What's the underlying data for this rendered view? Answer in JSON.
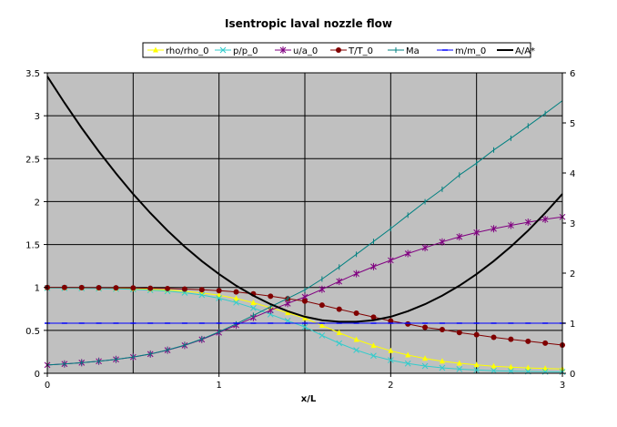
{
  "chart_data": {
    "type": "line",
    "title": "Isentropic laval nozzle flow",
    "xlabel": "x/L",
    "ylabel": "",
    "xlim": [
      0,
      3
    ],
    "ylim_left": [
      0,
      3.5
    ],
    "ylim_right": [
      0,
      6
    ],
    "x_ticks": [
      "0",
      "1",
      "2",
      "3"
    ],
    "y_left_ticks": [
      "0",
      "0.5",
      "1",
      "1.5",
      "2",
      "2.5",
      "3",
      "3.5"
    ],
    "y_right_ticks": [
      "0",
      "1",
      "2",
      "3",
      "4",
      "5",
      "6"
    ],
    "grid": true,
    "legend_position": "top",
    "x": [
      0,
      0.1,
      0.2,
      0.3,
      0.4,
      0.5,
      0.6,
      0.7,
      0.8,
      0.9,
      1.0,
      1.1,
      1.2,
      1.3,
      1.4,
      1.5,
      1.6,
      1.7,
      1.8,
      1.9,
      2.0,
      2.1,
      2.2,
      2.3,
      2.4,
      2.5,
      2.6,
      2.7,
      2.8,
      2.9,
      3.0
    ],
    "series": [
      {
        "name": "rho/rho_0",
        "color": "#ffff00",
        "marker": "triangle",
        "axis": "left",
        "values": [
          0.995,
          0.994,
          0.993,
          0.991,
          0.988,
          0.984,
          0.978,
          0.969,
          0.956,
          0.937,
          0.909,
          0.871,
          0.822,
          0.764,
          0.704,
          0.642,
          0.557,
          0.472,
          0.392,
          0.322,
          0.262,
          0.212,
          0.172,
          0.141,
          0.117,
          0.098,
          0.083,
          0.072,
          0.063,
          0.056,
          0.051
        ]
      },
      {
        "name": "p/p_0",
        "color": "#33cccc",
        "marker": "x",
        "axis": "left",
        "values": [
          0.993,
          0.992,
          0.99,
          0.987,
          0.983,
          0.978,
          0.969,
          0.957,
          0.939,
          0.912,
          0.875,
          0.824,
          0.76,
          0.686,
          0.612,
          0.54,
          0.441,
          0.35,
          0.27,
          0.204,
          0.153,
          0.114,
          0.085,
          0.064,
          0.049,
          0.038,
          0.03,
          0.025,
          0.021,
          0.018,
          0.016
        ]
      },
      {
        "name": "u/a_0",
        "color": "#800080",
        "marker": "star",
        "axis": "left",
        "values": [
          0.097,
          0.109,
          0.123,
          0.14,
          0.162,
          0.189,
          0.224,
          0.269,
          0.325,
          0.394,
          0.474,
          0.56,
          0.649,
          0.734,
          0.813,
          0.89,
          0.978,
          1.07,
          1.16,
          1.242,
          1.316,
          1.395,
          1.462,
          1.53,
          1.59,
          1.64,
          1.684,
          1.723,
          1.76,
          1.793,
          1.822
        ]
      },
      {
        "name": "T/T_0",
        "color": "#800000",
        "marker": "circle",
        "axis": "left",
        "values": [
          0.999,
          0.999,
          0.998,
          0.997,
          0.996,
          0.994,
          0.991,
          0.987,
          0.981,
          0.973,
          0.963,
          0.948,
          0.925,
          0.898,
          0.869,
          0.84,
          0.794,
          0.747,
          0.7,
          0.654,
          0.61,
          0.574,
          0.535,
          0.509,
          0.474,
          0.449,
          0.419,
          0.396,
          0.373,
          0.351,
          0.329
        ]
      },
      {
        "name": "Ma",
        "color": "#008080",
        "marker": "plus",
        "axis": "left",
        "values": [
          0.097,
          0.109,
          0.123,
          0.141,
          0.162,
          0.19,
          0.225,
          0.271,
          0.328,
          0.399,
          0.483,
          0.575,
          0.675,
          0.775,
          0.872,
          0.971,
          1.098,
          1.238,
          1.386,
          1.536,
          1.685,
          1.842,
          1.998,
          2.144,
          2.309,
          2.448,
          2.601,
          2.738,
          2.882,
          3.026,
          3.175
        ]
      },
      {
        "name": "m/m_0",
        "color": "#0000ff",
        "marker": "dash",
        "axis": "right",
        "values": [
          1,
          1,
          1,
          1,
          1,
          1,
          1,
          1,
          1,
          1,
          1,
          1,
          1,
          1,
          1,
          1,
          1,
          1,
          1,
          1,
          1,
          1,
          1,
          1,
          1,
          1,
          1,
          1,
          1,
          1,
          1
        ]
      },
      {
        "name": "A/A*",
        "color": "#000000",
        "marker": "none",
        "axis": "right",
        "values": [
          5.93,
          5.4,
          4.9,
          4.43,
          3.99,
          3.58,
          3.2,
          2.85,
          2.53,
          2.24,
          1.98,
          1.75,
          1.55,
          1.38,
          1.24,
          1.13,
          1.06,
          1.03,
          1.03,
          1.06,
          1.13,
          1.24,
          1.38,
          1.55,
          1.75,
          1.98,
          2.24,
          2.53,
          2.85,
          3.2,
          3.58
        ]
      }
    ]
  }
}
